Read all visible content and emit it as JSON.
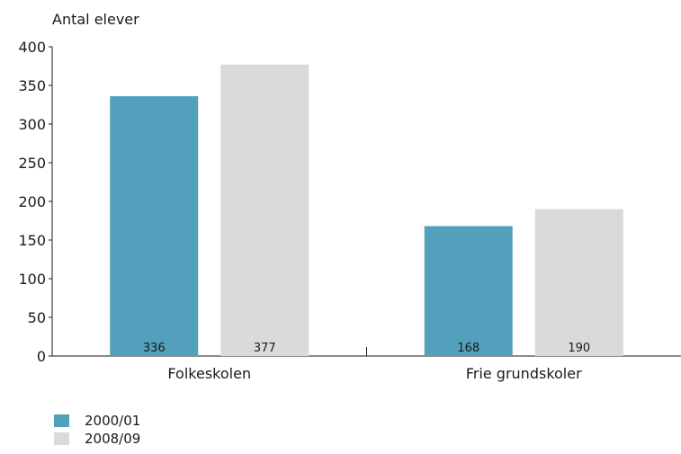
{
  "chart_data": {
    "type": "bar",
    "ylabel": "Antal elever",
    "xlabel": "",
    "title": "",
    "categories": [
      "Folkeskolen",
      "Frie grundskoler"
    ],
    "series": [
      {
        "name": "2000/01",
        "values": [
          336,
          168
        ],
        "labels": [
          "336",
          "168"
        ],
        "color": "#52a0bc"
      },
      {
        "name": "2008/09",
        "values": [
          377,
          190
        ],
        "labels": [
          "377",
          "190"
        ],
        "color": "#d9dada"
      }
    ],
    "ylim": [
      0,
      400
    ],
    "yticks": [
      "0",
      "50",
      "100",
      "150",
      "200",
      "250",
      "300",
      "350",
      "400"
    ],
    "grid": false,
    "legend_position": "bottom-left"
  }
}
